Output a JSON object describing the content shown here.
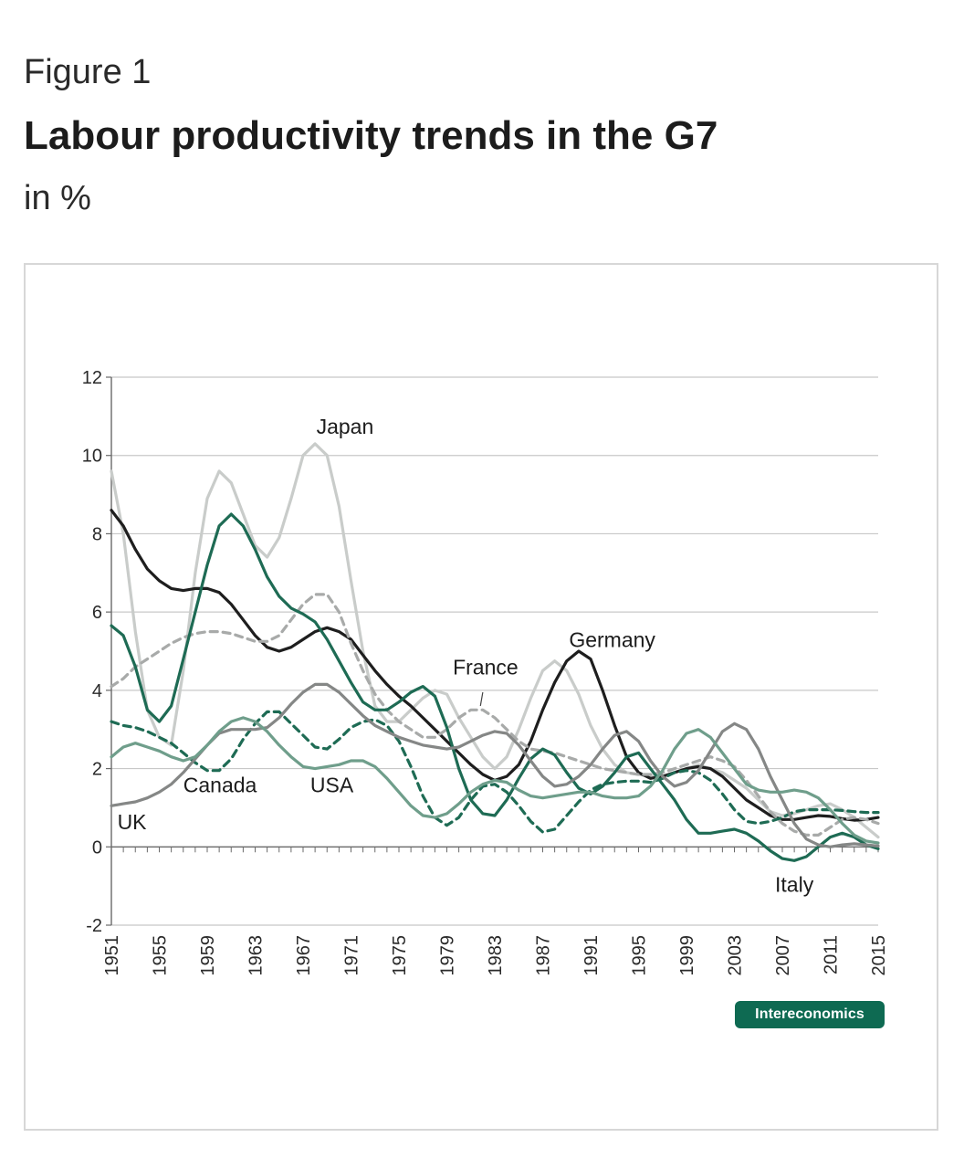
{
  "figure_label": "Figure 1",
  "title": "Labour productivity trends in the G7",
  "subtitle": "in %",
  "badge": "Intereconomics",
  "chart_data": {
    "type": "line",
    "ylim": [
      -2,
      12
    ],
    "yticks": [
      -2,
      0,
      2,
      4,
      6,
      8,
      10,
      12
    ],
    "xlim": [
      1951,
      2015
    ],
    "xticks": [
      1951,
      1955,
      1959,
      1963,
      1967,
      1971,
      1975,
      1979,
      1983,
      1987,
      1991,
      1995,
      1999,
      2003,
      2007,
      2011,
      2015
    ],
    "grid": "horizontal",
    "x": [
      1951,
      1952,
      1953,
      1954,
      1955,
      1956,
      1957,
      1958,
      1959,
      1960,
      1961,
      1962,
      1963,
      1964,
      1965,
      1966,
      1967,
      1968,
      1969,
      1970,
      1971,
      1972,
      1973,
      1974,
      1975,
      1976,
      1977,
      1978,
      1979,
      1980,
      1981,
      1982,
      1983,
      1984,
      1985,
      1986,
      1987,
      1988,
      1989,
      1990,
      1991,
      1992,
      1993,
      1994,
      1995,
      1996,
      1997,
      1998,
      1999,
      2000,
      2001,
      2002,
      2003,
      2004,
      2005,
      2006,
      2007,
      2008,
      2009,
      2010,
      2011,
      2012,
      2013,
      2014,
      2015
    ],
    "series": [
      {
        "name": "Japan",
        "color": "#c9ccca",
        "style": "solid",
        "values": [
          9.6,
          8.0,
          5.5,
          3.5,
          2.8,
          2.6,
          4.5,
          7.0,
          8.9,
          9.6,
          9.3,
          8.5,
          7.7,
          7.4,
          7.9,
          8.9,
          10.0,
          10.3,
          10.0,
          8.7,
          6.8,
          5.0,
          3.6,
          3.2,
          3.2,
          3.5,
          3.8,
          4.0,
          3.9,
          3.3,
          2.8,
          2.3,
          2.0,
          2.3,
          3.0,
          3.8,
          4.5,
          4.75,
          4.5,
          3.9,
          3.1,
          2.5,
          2.1,
          1.9,
          1.85,
          1.8,
          1.8,
          1.9,
          2.0,
          2.1,
          2.0,
          1.9,
          1.7,
          1.5,
          1.2,
          0.9,
          0.8,
          0.85,
          0.95,
          1.05,
          1.1,
          0.95,
          0.75,
          0.5,
          0.25
        ]
      },
      {
        "name": "Germany",
        "color": "#1e1e1e",
        "style": "solid",
        "values": [
          8.6,
          8.2,
          7.6,
          7.1,
          6.8,
          6.6,
          6.55,
          6.6,
          6.6,
          6.5,
          6.2,
          5.8,
          5.4,
          5.1,
          5.0,
          5.1,
          5.3,
          5.5,
          5.6,
          5.5,
          5.3,
          4.9,
          4.5,
          4.15,
          3.85,
          3.6,
          3.3,
          3.0,
          2.7,
          2.4,
          2.1,
          1.85,
          1.7,
          1.8,
          2.1,
          2.7,
          3.5,
          4.2,
          4.75,
          5.0,
          4.8,
          4.0,
          3.1,
          2.3,
          1.9,
          1.75,
          1.8,
          1.9,
          2.0,
          2.05,
          2.0,
          1.8,
          1.5,
          1.2,
          1.0,
          0.8,
          0.7,
          0.7,
          0.75,
          0.8,
          0.78,
          0.72,
          0.68,
          0.7,
          0.75
        ]
      },
      {
        "name": "France",
        "color": "#a8aaa9",
        "style": "dashed",
        "values": [
          4.1,
          4.3,
          4.6,
          4.8,
          5.0,
          5.2,
          5.35,
          5.45,
          5.5,
          5.5,
          5.45,
          5.35,
          5.25,
          5.25,
          5.4,
          5.8,
          6.2,
          6.45,
          6.45,
          6.0,
          5.2,
          4.5,
          3.9,
          3.5,
          3.2,
          3.0,
          2.8,
          2.8,
          3.0,
          3.3,
          3.5,
          3.5,
          3.3,
          3.0,
          2.7,
          2.5,
          2.45,
          2.4,
          2.3,
          2.2,
          2.1,
          2.0,
          1.95,
          1.9,
          1.85,
          1.85,
          1.9,
          2.0,
          2.1,
          2.2,
          2.3,
          2.2,
          2.05,
          1.7,
          1.3,
          0.9,
          0.6,
          0.4,
          0.3,
          0.3,
          0.5,
          0.7,
          0.75,
          0.7,
          0.6
        ]
      },
      {
        "name": "Canada",
        "color": "#1e6b54",
        "style": "solid",
        "values": [
          5.65,
          5.4,
          4.6,
          3.5,
          3.2,
          3.6,
          4.8,
          6.0,
          7.2,
          8.2,
          8.5,
          8.2,
          7.6,
          6.9,
          6.4,
          6.1,
          5.95,
          5.75,
          5.3,
          4.75,
          4.2,
          3.7,
          3.5,
          3.5,
          3.7,
          3.95,
          4.1,
          3.85,
          3.05,
          2.0,
          1.2,
          0.85,
          0.8,
          1.2,
          1.75,
          2.25,
          2.5,
          2.35,
          1.9,
          1.5,
          1.35,
          1.55,
          1.9,
          2.3,
          2.4,
          2.0,
          1.6,
          1.2,
          0.7,
          0.35,
          0.35,
          0.4,
          0.45,
          0.35,
          0.15,
          -0.1,
          -0.3,
          -0.35,
          -0.25,
          0.0,
          0.25,
          0.35,
          0.25,
          0.05,
          -0.05
        ]
      },
      {
        "name": "USA",
        "color": "#1e6b54",
        "style": "dashed",
        "values": [
          3.2,
          3.1,
          3.05,
          2.95,
          2.8,
          2.65,
          2.4,
          2.15,
          1.95,
          1.95,
          2.25,
          2.75,
          3.15,
          3.45,
          3.45,
          3.15,
          2.85,
          2.55,
          2.5,
          2.75,
          3.05,
          3.2,
          3.25,
          3.1,
          2.7,
          2.05,
          1.3,
          0.75,
          0.55,
          0.75,
          1.2,
          1.55,
          1.6,
          1.4,
          1.05,
          0.65,
          0.38,
          0.45,
          0.8,
          1.15,
          1.45,
          1.6,
          1.65,
          1.68,
          1.68,
          1.65,
          1.75,
          1.9,
          1.95,
          1.9,
          1.7,
          1.35,
          0.95,
          0.65,
          0.6,
          0.65,
          0.75,
          0.9,
          0.95,
          0.95,
          0.95,
          0.93,
          0.9,
          0.88,
          0.88
        ]
      },
      {
        "name": "UK",
        "color": "#858786",
        "style": "solid",
        "values": [
          1.05,
          1.1,
          1.15,
          1.25,
          1.4,
          1.6,
          1.9,
          2.25,
          2.6,
          2.9,
          3.0,
          3.0,
          3.0,
          3.05,
          3.3,
          3.65,
          3.95,
          4.15,
          4.15,
          3.95,
          3.65,
          3.35,
          3.1,
          2.95,
          2.8,
          2.7,
          2.6,
          2.55,
          2.5,
          2.55,
          2.7,
          2.85,
          2.95,
          2.9,
          2.6,
          2.2,
          1.8,
          1.55,
          1.6,
          1.8,
          2.1,
          2.5,
          2.85,
          2.95,
          2.7,
          2.2,
          1.8,
          1.55,
          1.65,
          1.95,
          2.45,
          2.95,
          3.15,
          3.0,
          2.5,
          1.8,
          1.2,
          0.6,
          0.2,
          0.05,
          0.0,
          0.05,
          0.08,
          0.05,
          0.02
        ]
      },
      {
        "name": "Italy",
        "color": "#6f9e8b",
        "style": "solid",
        "values": [
          2.3,
          2.55,
          2.65,
          2.55,
          2.45,
          2.3,
          2.2,
          2.3,
          2.6,
          2.95,
          3.2,
          3.3,
          3.2,
          2.95,
          2.6,
          2.3,
          2.05,
          2.0,
          2.05,
          2.1,
          2.2,
          2.2,
          2.05,
          1.75,
          1.4,
          1.05,
          0.8,
          0.75,
          0.85,
          1.1,
          1.4,
          1.6,
          1.7,
          1.65,
          1.45,
          1.3,
          1.25,
          1.3,
          1.35,
          1.4,
          1.4,
          1.3,
          1.25,
          1.25,
          1.3,
          1.55,
          1.95,
          2.5,
          2.9,
          3.0,
          2.8,
          2.4,
          2.0,
          1.6,
          1.45,
          1.4,
          1.4,
          1.45,
          1.4,
          1.25,
          0.95,
          0.6,
          0.3,
          0.15,
          0.1
        ]
      }
    ],
    "labels": [
      {
        "text": "Japan",
        "x": 1970.5,
        "y": 10.55,
        "anchor": "middle"
      },
      {
        "text": "Germany",
        "x": 1992.8,
        "y": 5.1,
        "anchor": "middle"
      },
      {
        "text": "France",
        "x": 1979.5,
        "y": 4.4,
        "anchor": "start"
      },
      {
        "text": "Canada",
        "x": 1957.0,
        "y": 1.4,
        "anchor": "start"
      },
      {
        "text": "USA",
        "x": 1967.6,
        "y": 1.4,
        "anchor": "start"
      },
      {
        "text": "UK",
        "x": 1951.5,
        "y": 0.45,
        "anchor": "start"
      },
      {
        "text": "Italy",
        "x": 2008.0,
        "y": -1.15,
        "anchor": "middle"
      }
    ],
    "leader": {
      "x1": 1981.8,
      "y1": 3.6,
      "x2": 1982.0,
      "y2": 3.95
    }
  }
}
